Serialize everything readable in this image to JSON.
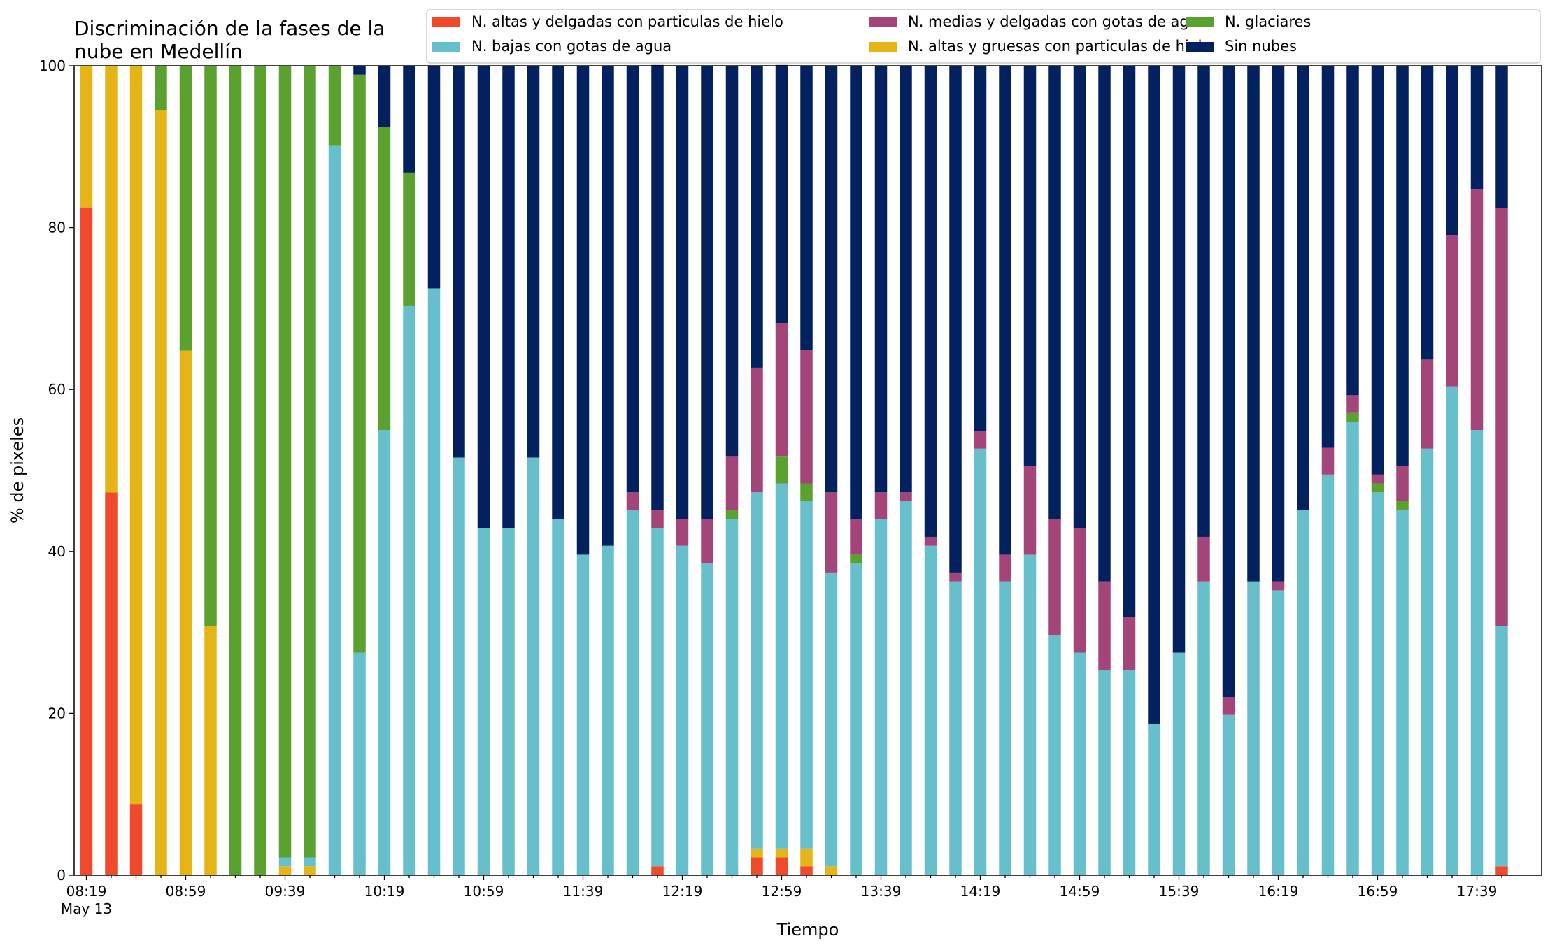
{
  "chart_data": {
    "type": "bar",
    "stacked": true,
    "title": "Discriminación de la fases de la\nnube en Medellín",
    "xlabel": "Tiempo",
    "ylabel": "% de pixeles",
    "ylim": [
      0,
      100
    ],
    "yticks": [
      0,
      20,
      40,
      60,
      80,
      100
    ],
    "xtick_labels": [
      {
        "index": 0,
        "label": "08:19",
        "sublabel": "May 13"
      },
      {
        "index": 4,
        "label": "08:59"
      },
      {
        "index": 8,
        "label": "09:39"
      },
      {
        "index": 12,
        "label": "10:19"
      },
      {
        "index": 16,
        "label": "10:59"
      },
      {
        "index": 20,
        "label": "11:39"
      },
      {
        "index": 24,
        "label": "12:19"
      },
      {
        "index": 28,
        "label": "12:59"
      },
      {
        "index": 32,
        "label": "13:39"
      },
      {
        "index": 36,
        "label": "14:19"
      },
      {
        "index": 40,
        "label": "14:59"
      },
      {
        "index": 44,
        "label": "15:39"
      },
      {
        "index": 48,
        "label": "16:19"
      },
      {
        "index": 52,
        "label": "16:59"
      },
      {
        "index": 56,
        "label": "17:39"
      }
    ],
    "grid": false,
    "legend_position": "top-right",
    "legend_order": [
      0,
      2,
      4,
      1,
      3,
      5
    ],
    "series": [
      {
        "name": "N. altas y delgadas con particulas de hielo",
        "color": "#ef4a2b",
        "values": [
          82.5,
          47.3,
          8.8,
          0,
          0,
          0,
          0,
          0,
          0,
          0,
          0,
          0,
          0,
          0,
          0,
          0,
          0,
          0,
          0,
          0,
          0,
          0,
          0,
          1.1,
          0,
          0,
          0,
          2.2,
          2.2,
          1.1,
          0,
          0,
          0,
          0,
          0,
          0,
          0,
          0,
          0,
          0,
          0,
          0,
          0,
          0,
          0,
          0,
          0,
          0,
          0,
          0,
          0,
          0,
          0,
          0,
          0,
          0,
          0,
          1.1
        ]
      },
      {
        "name": "N. altas y gruesas con particulas de hielo",
        "color": "#e5b518",
        "values": [
          17.5,
          52.7,
          91.2,
          94.5,
          64.8,
          30.8,
          0,
          0,
          1.1,
          1.1,
          0,
          0,
          0,
          0,
          0,
          0,
          0,
          0,
          0,
          0,
          0,
          0,
          0,
          0,
          0,
          0,
          0,
          1.1,
          1.1,
          2.2,
          1.1,
          0,
          0,
          0,
          0,
          0,
          0,
          0,
          0,
          0,
          0,
          0,
          0,
          0,
          0,
          0,
          0,
          0,
          0,
          0,
          0,
          0,
          0,
          0,
          0,
          0,
          0,
          0
        ]
      },
      {
        "name": "N. bajas con gotas de agua",
        "color": "#66bfca",
        "values": [
          0,
          0,
          0,
          0,
          0,
          0,
          0,
          0,
          1.1,
          1.1,
          90.1,
          27.5,
          55.0,
          70.3,
          72.5,
          51.6,
          42.9,
          42.9,
          51.6,
          44.0,
          39.6,
          40.7,
          45.1,
          41.8,
          40.7,
          38.5,
          44.0,
          44.0,
          45.1,
          42.9,
          36.3,
          38.5,
          44.0,
          46.2,
          40.7,
          36.3,
          52.7,
          36.3,
          39.6,
          29.7,
          27.5,
          25.3,
          25.3,
          18.7,
          27.5,
          36.3,
          19.8,
          36.3,
          35.2,
          45.1,
          49.5,
          56.0,
          47.3,
          45.1,
          52.7,
          60.4,
          55.0,
          29.7
        ]
      },
      {
        "name": "N. glaciares",
        "color": "#5ba12f",
        "values": [
          0,
          0,
          0,
          5.5,
          35.2,
          69.2,
          100,
          100,
          97.8,
          97.8,
          9.9,
          71.4,
          37.4,
          16.5,
          0,
          0,
          0,
          0,
          0,
          0,
          0,
          0,
          0,
          0,
          0,
          0,
          1.1,
          0,
          3.3,
          2.2,
          0,
          1.1,
          0,
          0,
          0,
          0,
          0,
          0,
          0,
          0,
          0,
          0,
          0,
          0,
          0,
          0,
          0,
          0,
          0,
          0,
          0,
          1.1,
          1.1,
          1.1,
          0,
          0,
          0,
          0
        ]
      },
      {
        "name": "N. medias y delgadas con gotas de agua",
        "color": "#a4457a",
        "values": [
          0,
          0,
          0,
          0,
          0,
          0,
          0,
          0,
          0,
          0,
          0,
          0,
          0,
          0,
          0,
          0,
          0,
          0,
          0,
          0,
          0,
          0,
          2.2,
          2.2,
          3.3,
          5.5,
          6.6,
          15.4,
          16.5,
          16.5,
          9.9,
          4.4,
          3.3,
          1.1,
          1.1,
          1.1,
          2.2,
          3.3,
          11.0,
          14.3,
          15.4,
          11.0,
          6.6,
          0,
          0,
          5.5,
          2.2,
          0,
          1.1,
          0,
          3.3,
          2.2,
          1.1,
          4.4,
          11.0,
          18.7,
          29.7,
          51.6
        ]
      },
      {
        "name": "Sin nubes",
        "color": "#03205f",
        "values": [
          0,
          0,
          0,
          0,
          0,
          0,
          0,
          0,
          0,
          0,
          0,
          1.1,
          7.6,
          13.2,
          27.5,
          48.4,
          57.1,
          57.1,
          48.4,
          56.0,
          60.4,
          59.3,
          52.7,
          55.0,
          56.0,
          56.0,
          48.3,
          37.3,
          31.9,
          35.1,
          52.7,
          56.0,
          52.7,
          52.7,
          58.2,
          62.6,
          45.1,
          60.4,
          49.4,
          56.0,
          57.1,
          63.7,
          68.1,
          81.3,
          72.5,
          58.2,
          78.0,
          63.7,
          63.7,
          54.9,
          47.2,
          40.7,
          50.5,
          49.4,
          36.3,
          20.9,
          15.3,
          17.6
        ]
      }
    ]
  }
}
